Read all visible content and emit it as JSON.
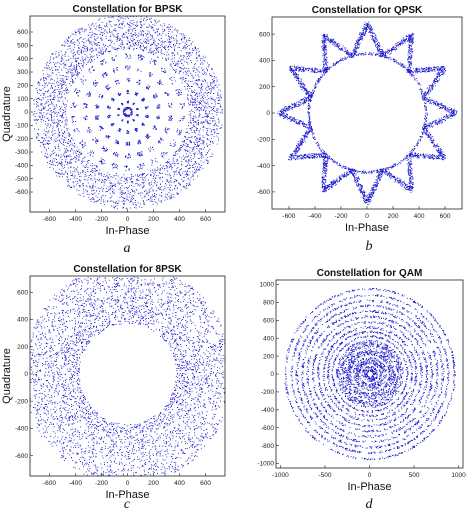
{
  "figure": {
    "panels": [
      {
        "letter": "a"
      },
      {
        "letter": "b"
      },
      {
        "letter": "c"
      },
      {
        "letter": "d"
      }
    ]
  },
  "colors": {
    "points": "#1a1acc",
    "frame": "#222222"
  },
  "chart_data": [
    {
      "type": "scatter",
      "title": "Constellation for BPSK",
      "xlabel": "In-Phase",
      "ylabel": "Quadrature",
      "xlim": [
        -750,
        750
      ],
      "ylim": [
        -750,
        720
      ],
      "xticks": [
        -600,
        -400,
        -200,
        0,
        200,
        400,
        600
      ],
      "yticks": [
        -600,
        -500,
        -400,
        -300,
        -200,
        -100,
        0,
        100,
        200,
        300,
        400,
        500,
        600
      ],
      "rings": [
        {
          "radius": 30,
          "width": 8,
          "count": 120
        },
        {
          "radius": 75,
          "width": 8,
          "count": 160,
          "spokes": 10
        },
        {
          "radius": 150,
          "width": 12,
          "count": 220,
          "spokes": 14
        },
        {
          "radius": 240,
          "width": 15,
          "count": 260,
          "spokes": 18
        },
        {
          "radius": 330,
          "width": 15,
          "count": 300,
          "spokes": 22
        },
        {
          "radius": 420,
          "width": 20,
          "count": 320,
          "spokes": 26
        },
        {
          "radius": 600,
          "width": 130,
          "count": 3200
        }
      ]
    },
    {
      "type": "scatter",
      "title": "Constellation for QPSK",
      "xlabel": "In-Phase",
      "ylabel": "",
      "xlim": [
        -730,
        730
      ],
      "ylim": [
        -730,
        730
      ],
      "xticks": [
        -600,
        -400,
        -200,
        0,
        200,
        400,
        600
      ],
      "yticks": [
        -600,
        -400,
        -200,
        0,
        200,
        400,
        600
      ],
      "star": {
        "inner_radius": 450,
        "outer_radius": 680,
        "points": 12,
        "count": 3600
      }
    },
    {
      "type": "scatter",
      "title": "Constellation for 8PSK",
      "xlabel": "In-Phase",
      "ylabel": "Quadrature",
      "xlim": [
        -750,
        750
      ],
      "ylim": [
        -750,
        720
      ],
      "xticks": [
        -600,
        -400,
        -200,
        0,
        200,
        400,
        600
      ],
      "yticks": [
        -600,
        -400,
        -200,
        0,
        200,
        400,
        600
      ],
      "rings": [
        {
          "radius": 590,
          "width": 220,
          "count": 4200
        }
      ]
    },
    {
      "type": "scatter",
      "title": "Constellation for QAM",
      "xlabel": "In-Phase",
      "ylabel": "",
      "xlim": [
        -1050,
        1050
      ],
      "ylim": [
        -1050,
        1050
      ],
      "xticks": [
        -1000,
        -500,
        0,
        500,
        1000
      ],
      "yticks": [
        -1000,
        -800,
        -600,
        -400,
        -200,
        0,
        200,
        400,
        600,
        800,
        1000
      ],
      "rings": [
        {
          "radius": 60,
          "width": 30,
          "count": 200
        },
        {
          "radius": 150,
          "width": 40,
          "count": 420
        },
        {
          "radius": 250,
          "width": 40,
          "count": 600
        },
        {
          "radius": 340,
          "width": 40,
          "count": 700
        },
        {
          "radius": 420,
          "width": 10,
          "count": 260
        },
        {
          "radius": 470,
          "width": 10,
          "count": 280
        },
        {
          "radius": 520,
          "width": 12,
          "count": 300
        },
        {
          "radius": 580,
          "width": 12,
          "count": 320
        },
        {
          "radius": 640,
          "width": 12,
          "count": 360
        },
        {
          "radius": 700,
          "width": 12,
          "count": 380
        },
        {
          "radius": 760,
          "width": 12,
          "count": 400
        },
        {
          "radius": 820,
          "width": 12,
          "count": 420
        },
        {
          "radius": 880,
          "width": 10,
          "count": 440
        },
        {
          "radius": 950,
          "width": 10,
          "count": 460
        }
      ]
    }
  ]
}
